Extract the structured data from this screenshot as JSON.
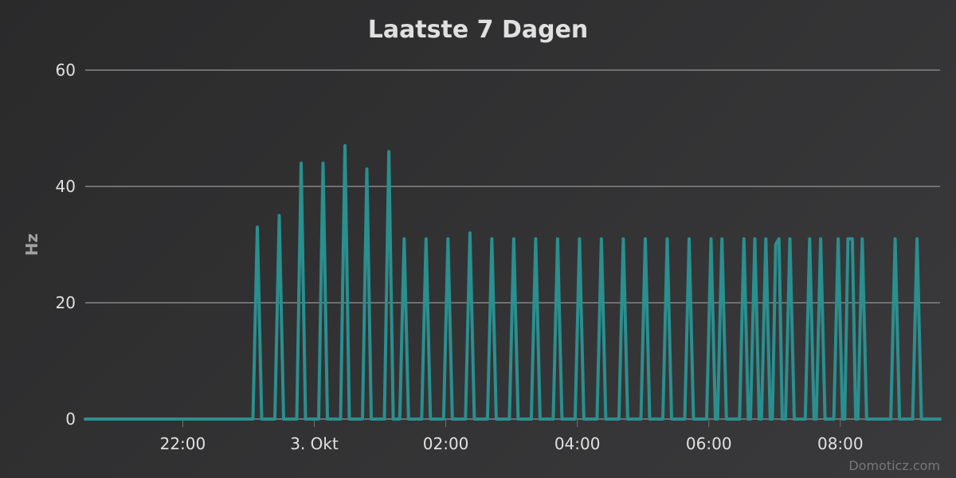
{
  "chart_data": {
    "type": "line",
    "title": "Laatste 7 Dagen",
    "ylabel": "Hz",
    "xlabel": "",
    "ylim": [
      0,
      60
    ],
    "yticks": [
      "0",
      "20",
      "40",
      "60"
    ],
    "xticks": [
      {
        "label": "22:00",
        "t": 1320
      },
      {
        "label": "3. Okt",
        "t": 1440
      },
      {
        "label": "02:00",
        "t": 1560
      },
      {
        "label": "04:00",
        "t": 1680
      },
      {
        "label": "06:00",
        "t": 1800
      },
      {
        "label": "08:00",
        "t": 1920
      }
    ],
    "xrange_minutes": [
      1231,
      2011
    ],
    "grid": true,
    "legend": false,
    "colors": {
      "line": "#2a8f8f",
      "grid": "#707070",
      "text": "#e0e0e0",
      "axis_title": "#a0a0a0",
      "credits": "#777777"
    },
    "series": [
      {
        "name": "",
        "points": [
          [
            1231,
            0
          ],
          [
            1384,
            0
          ],
          [
            1388,
            33
          ],
          [
            1392,
            0
          ],
          [
            1404,
            0
          ],
          [
            1408,
            35
          ],
          [
            1412,
            0
          ],
          [
            1424,
            0
          ],
          [
            1428,
            44
          ],
          [
            1432,
            0
          ],
          [
            1444,
            0
          ],
          [
            1448,
            44
          ],
          [
            1452,
            0
          ],
          [
            1464,
            0
          ],
          [
            1468,
            47
          ],
          [
            1472,
            0
          ],
          [
            1484,
            0
          ],
          [
            1488,
            43
          ],
          [
            1492,
            0
          ],
          [
            1504,
            0
          ],
          [
            1508,
            46
          ],
          [
            1512,
            0
          ],
          [
            1518,
            0
          ],
          [
            1522,
            31
          ],
          [
            1526,
            0
          ],
          [
            1538,
            0
          ],
          [
            1542,
            31
          ],
          [
            1546,
            0
          ],
          [
            1558,
            0
          ],
          [
            1562,
            31
          ],
          [
            1566,
            0
          ],
          [
            1578,
            0
          ],
          [
            1582,
            32
          ],
          [
            1586,
            0
          ],
          [
            1598,
            0
          ],
          [
            1602,
            31
          ],
          [
            1606,
            0
          ],
          [
            1618,
            0
          ],
          [
            1622,
            31
          ],
          [
            1626,
            0
          ],
          [
            1638,
            0
          ],
          [
            1642,
            31
          ],
          [
            1646,
            0
          ],
          [
            1658,
            0
          ],
          [
            1662,
            31
          ],
          [
            1666,
            0
          ],
          [
            1678,
            0
          ],
          [
            1682,
            31
          ],
          [
            1686,
            0
          ],
          [
            1698,
            0
          ],
          [
            1702,
            31
          ],
          [
            1706,
            0
          ],
          [
            1718,
            0
          ],
          [
            1722,
            31
          ],
          [
            1726,
            0
          ],
          [
            1738,
            0
          ],
          [
            1742,
            31
          ],
          [
            1746,
            0
          ],
          [
            1758,
            0
          ],
          [
            1762,
            31
          ],
          [
            1766,
            0
          ],
          [
            1778,
            0
          ],
          [
            1782,
            31
          ],
          [
            1786,
            0
          ],
          [
            1798,
            0
          ],
          [
            1802,
            31
          ],
          [
            1806,
            0
          ],
          [
            1808,
            0
          ],
          [
            1812,
            31
          ],
          [
            1816,
            0
          ],
          [
            1828,
            0
          ],
          [
            1832,
            31
          ],
          [
            1836,
            0
          ],
          [
            1838,
            0
          ],
          [
            1842,
            31
          ],
          [
            1846,
            0
          ],
          [
            1848,
            0
          ],
          [
            1852,
            31
          ],
          [
            1856,
            0
          ],
          [
            1858,
            0
          ],
          [
            1861,
            30
          ],
          [
            1864,
            31
          ],
          [
            1867,
            0
          ],
          [
            1870,
            0
          ],
          [
            1874,
            31
          ],
          [
            1878,
            0
          ],
          [
            1888,
            0
          ],
          [
            1892,
            31
          ],
          [
            1896,
            0
          ],
          [
            1898,
            0
          ],
          [
            1902,
            31
          ],
          [
            1906,
            0
          ],
          [
            1914,
            0
          ],
          [
            1918,
            31
          ],
          [
            1922,
            0
          ],
          [
            1924,
            0
          ],
          [
            1927,
            31
          ],
          [
            1931,
            31
          ],
          [
            1934,
            0
          ],
          [
            1936,
            0
          ],
          [
            1940,
            31
          ],
          [
            1944,
            0
          ],
          [
            1966,
            0
          ],
          [
            1970,
            31
          ],
          [
            1974,
            0
          ],
          [
            1986,
            0
          ],
          [
            1990,
            31
          ],
          [
            1994,
            0
          ],
          [
            2011,
            0
          ]
        ]
      }
    ]
  },
  "credits": "Domoticz.com"
}
